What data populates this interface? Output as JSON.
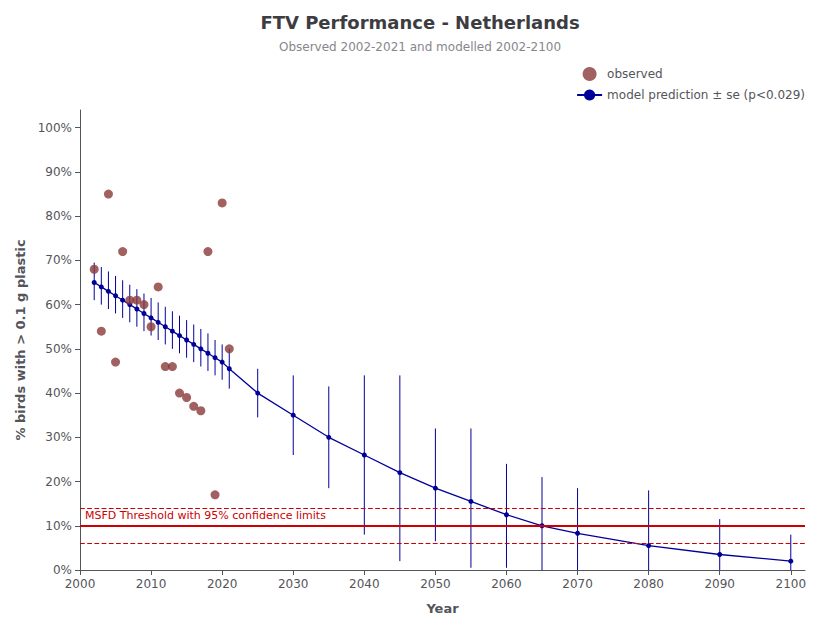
{
  "chart_data": {
    "type": "line",
    "title": "FTV Performance - Netherlands",
    "subtitle": "Observed 2002-2021 and modelled 2002-2100",
    "xlabel": "Year",
    "ylabel": "% birds with > 0.1 g plastic",
    "series": [
      {
        "name": "observed",
        "type": "scatter",
        "marker": "circle",
        "color": "#8B3A3A",
        "x": [
          2002,
          2003,
          2004,
          2005,
          2006,
          2007,
          2008,
          2009,
          2010,
          2011,
          2012,
          2013,
          2014,
          2015,
          2016,
          2017,
          2018,
          2019,
          2020,
          2021
        ],
        "values": [
          0.68,
          0.54,
          0.85,
          0.47,
          0.72,
          0.61,
          0.61,
          0.6,
          0.55,
          0.64,
          0.46,
          0.46,
          0.4,
          0.39,
          0.37,
          0.36,
          0.72,
          0.17,
          0.83,
          0.5
        ]
      },
      {
        "name": "model prediction ± se (p<0.029)",
        "type": "line",
        "marker": "circle",
        "color": "#000099",
        "x": [
          2002,
          2003,
          2004,
          2005,
          2006,
          2007,
          2008,
          2009,
          2010,
          2011,
          2012,
          2013,
          2014,
          2015,
          2016,
          2017,
          2018,
          2019,
          2020,
          2021,
          2025,
          2030,
          2035,
          2040,
          2045,
          2050,
          2055,
          2060,
          2065,
          2070,
          2080,
          2090,
          2100
        ],
        "values": [
          0.65,
          0.64,
          0.63,
          0.62,
          0.61,
          0.6,
          0.59,
          0.58,
          0.57,
          0.56,
          0.55,
          0.54,
          0.53,
          0.52,
          0.51,
          0.5,
          0.49,
          0.48,
          0.47,
          0.455,
          0.4,
          0.35,
          0.3,
          0.26,
          0.22,
          0.185,
          0.155,
          0.125,
          0.1,
          0.083,
          0.055,
          0.035,
          0.02
        ],
        "upper": [
          0.695,
          0.685,
          0.675,
          0.665,
          0.655,
          0.645,
          0.635,
          0.625,
          0.615,
          0.605,
          0.595,
          0.585,
          0.575,
          0.565,
          0.555,
          0.545,
          0.535,
          0.52,
          0.51,
          0.5,
          0.455,
          0.44,
          0.415,
          0.44,
          0.44,
          0.32,
          0.32,
          0.24,
          0.21,
          0.185,
          0.18,
          0.115,
          0.08
        ],
        "lower": [
          0.61,
          0.6,
          0.59,
          0.58,
          0.57,
          0.56,
          0.55,
          0.54,
          0.53,
          0.52,
          0.51,
          0.5,
          0.49,
          0.48,
          0.47,
          0.46,
          0.45,
          0.44,
          0.43,
          0.41,
          0.345,
          0.26,
          0.185,
          0.08,
          0.02,
          0.065,
          0.005,
          0.005,
          0.0,
          0.0,
          0.0,
          0.0,
          0.0
        ]
      }
    ],
    "hlines": [
      {
        "value": 0.1,
        "color": "#CC0000",
        "line_style": "solid",
        "label": "MSFD Threshold with 95% confidence limits"
      },
      {
        "value": 0.14,
        "color": "#CC0000",
        "line_style": "dashed"
      },
      {
        "value": 0.06,
        "color": "#CC0000",
        "line_style": "dashed"
      }
    ],
    "xlim": [
      2000,
      2102
    ],
    "xticks": [
      2000,
      2010,
      2020,
      2030,
      2040,
      2050,
      2060,
      2070,
      2080,
      2090,
      2100
    ],
    "ylim": [
      0.0,
      1.04
    ],
    "yticks": [
      {
        "value": 0.0,
        "label": "0%"
      },
      {
        "value": 0.1,
        "label": "10%"
      },
      {
        "value": 0.2,
        "label": "20%"
      },
      {
        "value": 0.3,
        "label": "30%"
      },
      {
        "value": 0.4,
        "label": "40%"
      },
      {
        "value": 0.5,
        "label": "50%"
      },
      {
        "value": 0.6,
        "label": "60%"
      },
      {
        "value": 0.7,
        "label": "70%"
      },
      {
        "value": 0.8,
        "label": "80%"
      },
      {
        "value": 0.9,
        "label": "90%"
      },
      {
        "value": 1.0,
        "label": "100%"
      }
    ],
    "grid": false,
    "legend": "upper right"
  }
}
